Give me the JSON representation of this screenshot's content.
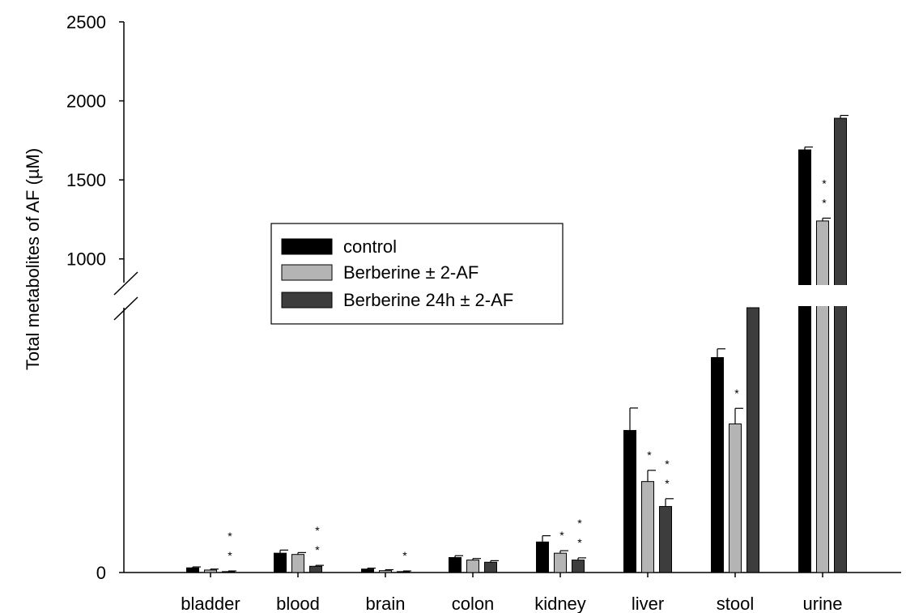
{
  "chart_data": {
    "type": "bar",
    "ylabel": "Total metabolites of AF (µM)",
    "xlabel": "",
    "title": "",
    "y_axis_break": {
      "lower_range": [
        0,
        850
      ],
      "upper_range": [
        850,
        2500
      ]
    },
    "y_ticks": [
      {
        "value": 0,
        "label": "0"
      },
      {
        "value": 1000,
        "label": "1000"
      },
      {
        "value": 1500,
        "label": "1500"
      },
      {
        "value": 2000,
        "label": "2000"
      },
      {
        "value": 2500,
        "label": "2500"
      }
    ],
    "categories": [
      "bladder",
      "blood",
      "brain",
      "colon",
      "kidney",
      "liver",
      "stool",
      "urine"
    ],
    "series": [
      {
        "name": "control",
        "color": "#000000",
        "values": [
          15,
          62,
          11,
          48,
          98,
          456,
          690,
          1690
        ],
        "errors": [
          3,
          10,
          3,
          6,
          20,
          72,
          28,
          18
        ]
      },
      {
        "name": "Berberine ± 2-AF",
        "color": "#b4b4b4",
        "values": [
          8,
          58,
          6,
          40,
          62,
          292,
          477,
          1240
        ],
        "errors": [
          3,
          6,
          3,
          5,
          8,
          36,
          50,
          18
        ]
      },
      {
        "name": "Berberine 24h ± 2-AF",
        "color": "#3d3d3d",
        "values": [
          3,
          20,
          3,
          33,
          40,
          212,
          850,
          1890
        ],
        "errors": [
          2,
          3,
          2,
          5,
          7,
          25,
          0,
          18
        ]
      }
    ],
    "significance": [
      {
        "category": "bladder",
        "series": 2,
        "mark": "**"
      },
      {
        "category": "blood",
        "series": 2,
        "mark": "**"
      },
      {
        "category": "brain",
        "series": 2,
        "mark": "*"
      },
      {
        "category": "kidney",
        "series": 1,
        "mark": "*"
      },
      {
        "category": "kidney",
        "series": 2,
        "mark": "**"
      },
      {
        "category": "liver",
        "series": 1,
        "mark": "*"
      },
      {
        "category": "liver",
        "series": 2,
        "mark": "**"
      },
      {
        "category": "stool",
        "series": 1,
        "mark": "*"
      },
      {
        "category": "urine",
        "series": 1,
        "mark": "**"
      }
    ],
    "legend_position": "middle-left",
    "grid": false
  }
}
